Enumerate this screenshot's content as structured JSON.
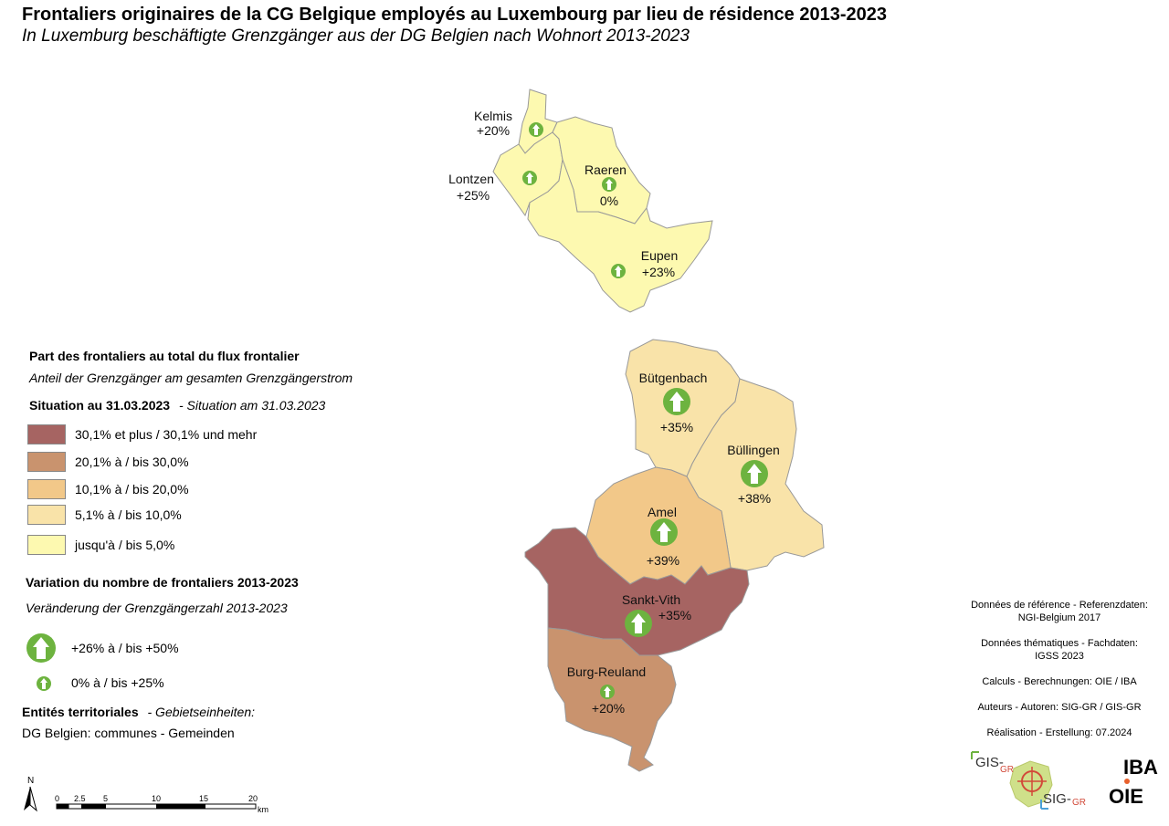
{
  "title": "Frontaliers originaires de la CG Belgique employés au Luxembourg par lieu de résidence 2013-2023",
  "subtitle": "In Luxemburg beschäftigte Grenzgänger aus der DG Belgien nach Wohnort 2013-2023",
  "communes": [
    {
      "name": "Kelmis",
      "change": "+20%",
      "share_class": 5,
      "change_class": "small"
    },
    {
      "name": "Lontzen",
      "change": "+25%",
      "share_class": 5,
      "change_class": "small"
    },
    {
      "name": "Raeren",
      "change": "0%",
      "share_class": 5,
      "change_class": "small"
    },
    {
      "name": "Eupen",
      "change": "+23%",
      "share_class": 5,
      "change_class": "small"
    },
    {
      "name": "Bütgenbach",
      "change": "+35%",
      "share_class": 4,
      "change_class": "large"
    },
    {
      "name": "Büllingen",
      "change": "+38%",
      "share_class": 4,
      "change_class": "large"
    },
    {
      "name": "Amel",
      "change": "+39%",
      "share_class": 3,
      "change_class": "large"
    },
    {
      "name": "Sankt-Vith",
      "change": "+35%",
      "share_class": 1,
      "change_class": "large"
    },
    {
      "name": "Burg-Reuland",
      "change": "+20%",
      "share_class": 2,
      "change_class": "small"
    }
  ],
  "legend": {
    "share_title": "Part des frontaliers au total du flux frontalier",
    "share_title_de": "Anteil der Grenzgänger am gesamten Grenzgängerstrom",
    "situation_fr": "Situation au 31.03.2023",
    "situation_de": "- Situation am 31.03.2023",
    "classes": [
      {
        "label": "30,1% et plus / 30,1% und mehr",
        "color": "#a66462"
      },
      {
        "label": "20,1% à / bis 30,0%",
        "color": "#c9936e"
      },
      {
        "label": "10,1% à / bis 20,0%",
        "color": "#f2c889"
      },
      {
        "label": "5,1% à / bis 10,0%",
        "color": "#f9e3a9"
      },
      {
        "label": "jusqu'à / bis 5,0%",
        "color": "#fdf9b0"
      }
    ],
    "change_title": "Variation du nombre de frontaliers 2013-2023",
    "change_title_de": "Veränderung der Grenzgängerzahl 2013-2023",
    "change_classes": [
      {
        "label": "+26% à / bis +50%",
        "size": "large"
      },
      {
        "label": "0% à / bis +25%",
        "size": "small"
      }
    ],
    "arrow_color": "#6db33f",
    "entities_fr": "Entités territoriales",
    "entities_de": "- Gebietseinheiten:",
    "entities_value": "DG Belgien: communes - Gemeinden"
  },
  "credits": [
    {
      "line1": "Données de référence - Referenzdaten:",
      "line2": "NGI-Belgium 2017"
    },
    {
      "line1": "Données thématiques - Fachdaten:",
      "line2": "IGSS 2023"
    },
    {
      "line1": "Calculs - Berechnungen: OIE / IBA",
      "line2": ""
    },
    {
      "line1": "Auteurs - Autoren: SIG-GR / GIS-GR",
      "line2": ""
    },
    {
      "line1": "Réalisation - Erstellung: 07.2024",
      "line2": ""
    }
  ],
  "logos": {
    "gis": "GIS-",
    "gis_gr": "GR",
    "sig": "SIG-",
    "sig_gr": "GR",
    "iba": "IBA",
    "oie": "OIE"
  },
  "scalebar": {
    "north": "N",
    "ticks": [
      "0",
      "2.5",
      "5",
      "10",
      "15",
      "20"
    ],
    "unit": "km"
  }
}
